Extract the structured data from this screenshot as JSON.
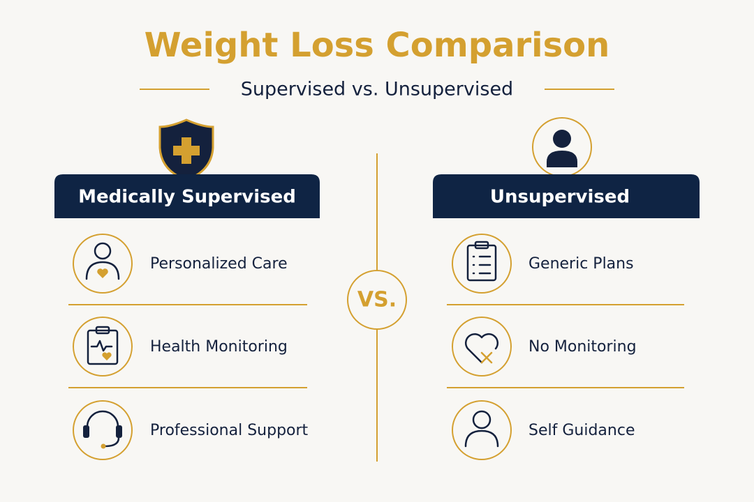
{
  "header": {
    "title": "Weight Loss Comparison",
    "subtitle": "Supervised vs. Unsupervised"
  },
  "vs_label": "VS.",
  "columns": [
    {
      "title": "Medically Supervised",
      "items": [
        "Personalized Care",
        "Health Monitoring",
        "Professional Support"
      ]
    },
    {
      "title": "Unsupervised",
      "items": [
        "Generic Plans",
        "No Monitoring",
        "Self Guidance"
      ]
    }
  ]
}
